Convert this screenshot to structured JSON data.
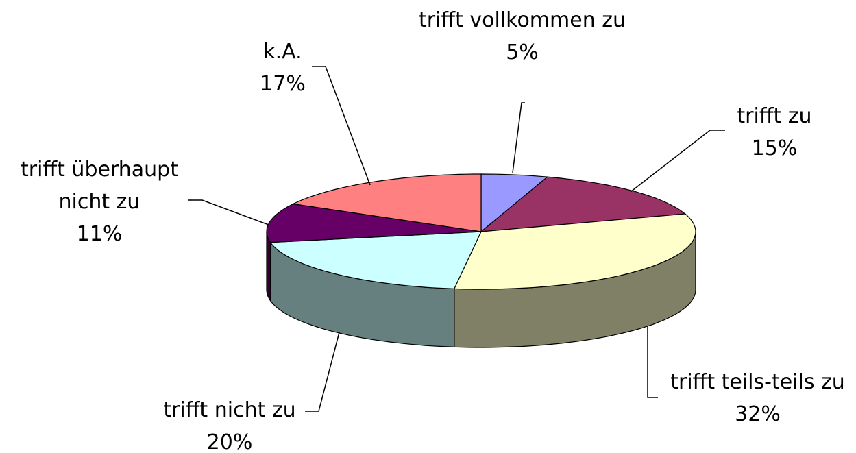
{
  "chart_data": {
    "type": "pie",
    "categories": [
      "trifft vollkommen zu",
      "trifft zu",
      "trifft teils-teils zu",
      "trifft nicht zu",
      "trifft überhaupt nicht zu",
      "k.A."
    ],
    "values": [
      5,
      15,
      32,
      20,
      11,
      17
    ],
    "value_labels": [
      "5%",
      "15%",
      "32%",
      "20%",
      "11%",
      "17%"
    ],
    "colors": [
      "#9999FF",
      "#993366",
      "#FFFFCC",
      "#CCFFFF",
      "#660066",
      "#FF8080"
    ]
  }
}
